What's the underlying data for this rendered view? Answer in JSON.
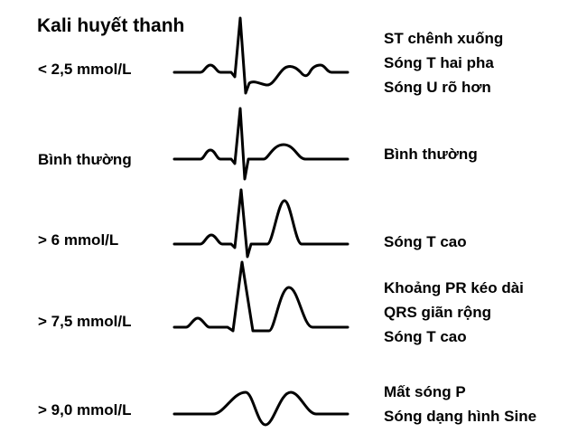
{
  "title": "Kali huyết thanh",
  "rows": [
    {
      "level": "< 2,5 mmol/L",
      "lines": [
        "ST chênh xuống",
        "Sóng T hai pha",
        "Sóng U rõ hơn"
      ]
    },
    {
      "level": "Bình thường",
      "lines": [
        "Bình thường"
      ]
    },
    {
      "level": "> 6 mmol/L",
      "lines": [
        "Sóng T cao"
      ]
    },
    {
      "level": "> 7,5 mmol/L",
      "lines": [
        "Khoảng PR kéo dài",
        "QRS giãn rộng",
        "Sóng T cao"
      ]
    },
    {
      "level": "> 9,0 mmol/L",
      "lines": [
        "Mất sóng P",
        "Sóng dạng hình Sine"
      ]
    }
  ]
}
